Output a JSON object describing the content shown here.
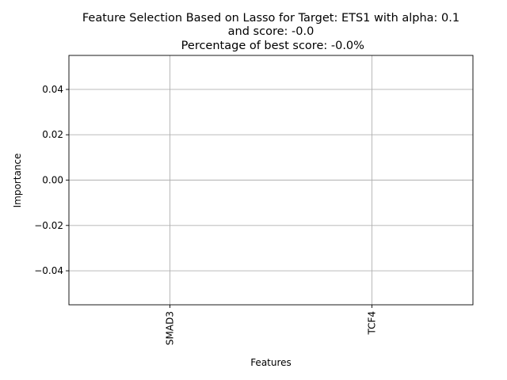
{
  "chart_data": {
    "type": "bar",
    "title_lines": [
      "Feature Selection Based on Lasso for Target: ETS1 with alpha: 0.1",
      "and score: -0.0",
      " Percentage of best score: -0.0%"
    ],
    "xlabel": "Features",
    "ylabel": "Importance",
    "categories": [
      "SMAD3",
      "TCF4"
    ],
    "values": [
      0.0,
      0.0
    ],
    "ylim": [
      -0.055,
      0.055
    ],
    "yticks": [
      -0.04,
      -0.02,
      0.0,
      0.02,
      0.04
    ],
    "ytick_labels": [
      "−0.04",
      "−0.02",
      "0.00",
      "0.02",
      "0.04"
    ],
    "grid": true,
    "colors": {
      "grid": "#b0b0b0",
      "frame": "#000000",
      "bar": "#1f77b4"
    }
  }
}
